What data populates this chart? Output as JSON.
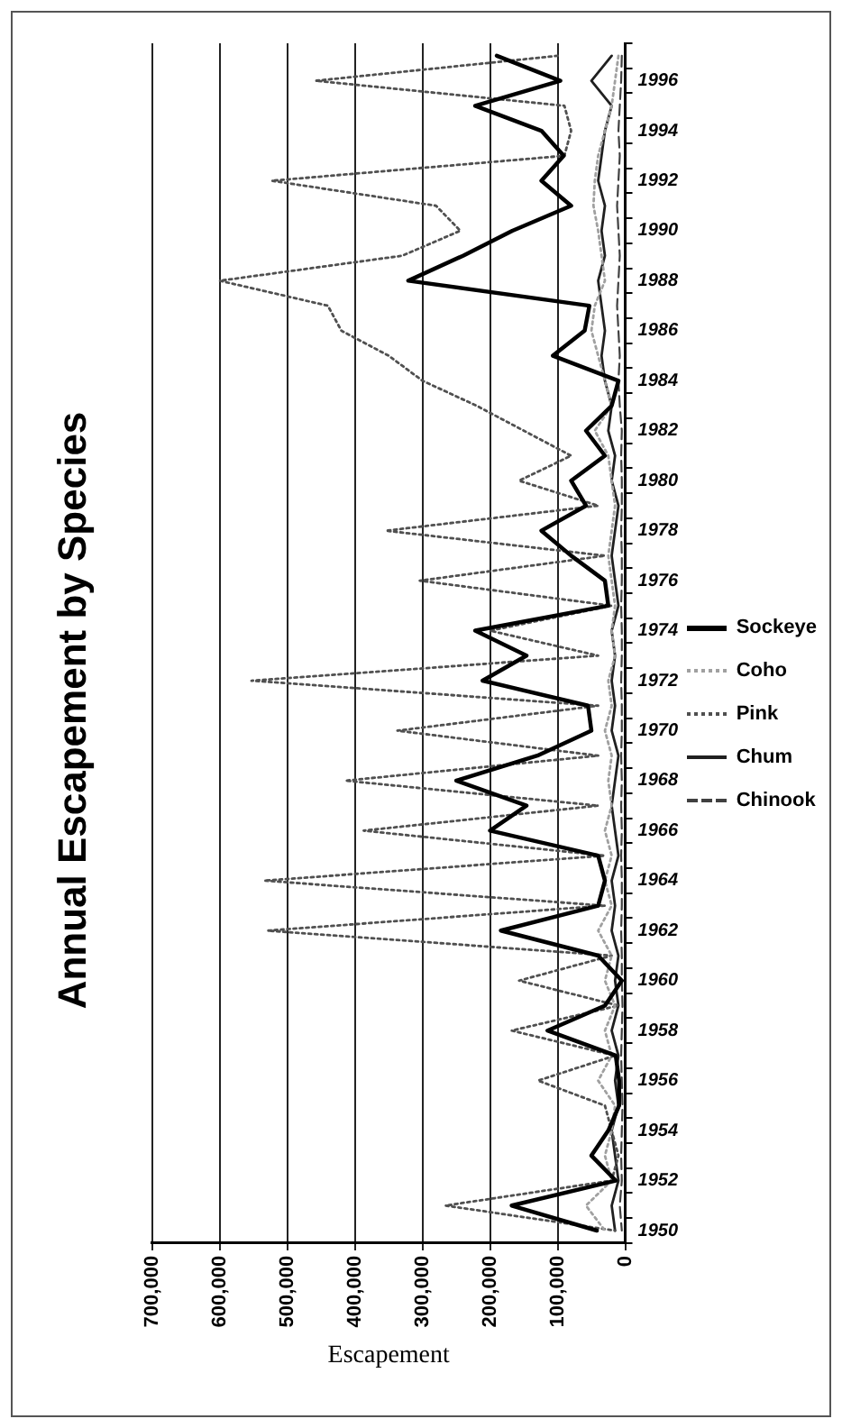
{
  "chart_data": {
    "type": "line",
    "title": "Annual Escapement by Species",
    "categories": [
      null,
      "1996",
      null,
      "1994",
      null,
      "1992",
      null,
      "1990",
      null,
      "1988",
      null,
      "1986",
      null,
      "1984",
      null,
      "1982",
      null,
      "1980",
      null,
      "1978",
      null,
      "1976",
      null,
      "1974",
      null,
      "1972",
      null,
      "1970",
      null,
      "1968",
      null,
      "1966",
      null,
      "1964",
      null,
      "1962",
      null,
      "1960",
      null,
      "1958",
      null,
      "1956",
      null,
      "1954",
      null,
      "1952",
      null,
      "1950"
    ],
    "series": [
      {
        "name": "Sockeye",
        "color": "#000000",
        "line_style": "solid",
        "values": [
          190000,
          96000,
          222000,
          124000,
          91000,
          124000,
          80000,
          167000,
          240000,
          321000,
          53000,
          60000,
          107000,
          10000,
          20000,
          58000,
          30000,
          80000,
          58000,
          124000,
          80000,
          30000,
          25000,
          222000,
          146000,
          211000,
          55000,
          50000,
          130000,
          250000,
          146000,
          200000,
          40000,
          30000,
          40000,
          184000,
          40000,
          5000,
          30000,
          115000,
          14000,
          9000,
          9000,
          25000,
          50000,
          14000,
          168000,
          42000
        ]
      },
      {
        "name": "Coho",
        "color": "#a0a0a0",
        "line_style": "dotted",
        "values": [
          10000,
          15000,
          20000,
          30000,
          40000,
          45000,
          47000,
          40000,
          35000,
          30000,
          45000,
          50000,
          40000,
          30000,
          20000,
          45000,
          25000,
          20000,
          15000,
          20000,
          25000,
          20000,
          15000,
          20000,
          15000,
          25000,
          20000,
          30000,
          20000,
          25000,
          20000,
          30000,
          20000,
          30000,
          20000,
          40000,
          20000,
          30000,
          15000,
          30000,
          20000,
          40000,
          15000,
          20000,
          30000,
          20000,
          58000,
          30000
        ]
      },
      {
        "name": "Pink",
        "color": "#505050",
        "line_style": "dotted",
        "values": [
          100000,
          458000,
          90000,
          80000,
          90000,
          523000,
          280000,
          244000,
          330000,
          600000,
          440000,
          420000,
          350000,
          300000,
          220000,
          150000,
          80000,
          157000,
          40000,
          354000,
          30000,
          304000,
          20000,
          200000,
          40000,
          553000,
          40000,
          337000,
          40000,
          414000,
          40000,
          387000,
          30000,
          534000,
          30000,
          529000,
          20000,
          157000,
          10000,
          168000,
          15000,
          129000,
          30000,
          20000,
          10000,
          20000,
          266000,
          15000
        ]
      },
      {
        "name": "Chum",
        "color": "#202020",
        "line_style": "solid",
        "values": [
          20000,
          50000,
          20000,
          30000,
          35000,
          40000,
          30000,
          35000,
          30000,
          40000,
          35000,
          30000,
          35000,
          30000,
          20000,
          25000,
          15000,
          20000,
          10000,
          15000,
          20000,
          15000,
          10000,
          20000,
          15000,
          20000,
          15000,
          20000,
          10000,
          15000,
          20000,
          15000,
          10000,
          20000,
          15000,
          20000,
          10000,
          15000,
          10000,
          20000,
          10000,
          15000,
          10000,
          20000,
          15000,
          10000,
          20000,
          15000
        ]
      },
      {
        "name": "Chinook",
        "color": "#404040",
        "line_style": "dashed",
        "values": [
          5000,
          6000,
          8000,
          10000,
          8000,
          10000,
          12000,
          10000,
          8000,
          10000,
          12000,
          10000,
          8000,
          10000,
          8000,
          5000,
          6000,
          5000,
          5000,
          6000,
          5000,
          5000,
          6000,
          5000,
          5000,
          6000,
          5000,
          5000,
          6000,
          5000,
          6000,
          5000,
          6000,
          5000,
          5000,
          6000,
          5000,
          5000,
          4000,
          5000,
          6000,
          5000,
          4000,
          5000,
          6000,
          5000,
          8000,
          5000
        ]
      }
    ],
    "orientation": "horizontal",
    "xlabel": "Escapement",
    "xlim": [
      700000,
      0
    ],
    "xticks": [
      0,
      {
        "value": 100000,
        "label": "100,000"
      },
      {
        "value": 200000,
        "label": "200,000"
      },
      {
        "value": 300000,
        "label": "300,000"
      },
      {
        "value": 400000,
        "label": "400,000"
      },
      {
        "value": 500000,
        "label": "500,000"
      },
      {
        "value": 600000,
        "label": "600,000"
      },
      {
        "value": 700000,
        "label": "700,000"
      }
    ],
    "grid": "x",
    "legend": "right",
    "marker": "none"
  }
}
